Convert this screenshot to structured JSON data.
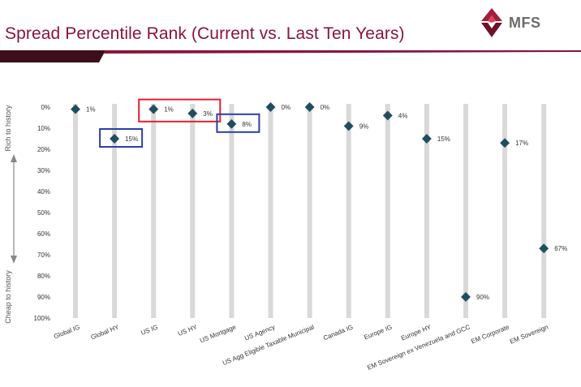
{
  "slide": {
    "title": "Spread Percentile Rank (Current vs. Last Ten Years)",
    "logo_text": "MFS",
    "colors": {
      "title": "#8a1538",
      "band_dark": "#3d0f1c",
      "band_red": "#8a1538",
      "marker": "#1f4e5f",
      "bar": "#d9d9d9",
      "highlight_red": "#e0202e",
      "highlight_blue": "#2b3eb0"
    }
  },
  "chart_data": {
    "type": "scatter",
    "title": "Spread Percentile Rank (Current vs. Last Ten Years)",
    "y_axis_top_label": "Rich to history",
    "y_axis_bottom_label": "Cheap to history",
    "ylim": [
      0,
      100
    ],
    "y_inverted": true,
    "y_ticks": [
      "0%",
      "10%",
      "20%",
      "30%",
      "40%",
      "50%",
      "60%",
      "70%",
      "80%",
      "90%",
      "100%"
    ],
    "categories": [
      "Global IG",
      "Global HY",
      "US IG",
      "US HY",
      "US Mortgage",
      "US Agency",
      "US Agg Eligible Taxable Municipal",
      "Canada IG",
      "Europe IG",
      "Europe HY",
      "EM Sovereign ex Venezuela and GCC",
      "EM Corporate",
      "EM Sovereign"
    ],
    "values": [
      1,
      15,
      1,
      3,
      8,
      0,
      0,
      9,
      4,
      15,
      90,
      17,
      67
    ],
    "value_labels": [
      "1%",
      "15%",
      "1%",
      "3%",
      "8%",
      "0%",
      "0%",
      "9%",
      "4%",
      "15%",
      "90%",
      "17%",
      "67%"
    ],
    "grid": false,
    "highlights": [
      {
        "color": "red",
        "categories": [
          "US IG",
          "US HY"
        ]
      },
      {
        "color": "blue",
        "categories": [
          "Global HY"
        ]
      },
      {
        "color": "blue",
        "categories": [
          "US Mortgage"
        ]
      }
    ]
  }
}
